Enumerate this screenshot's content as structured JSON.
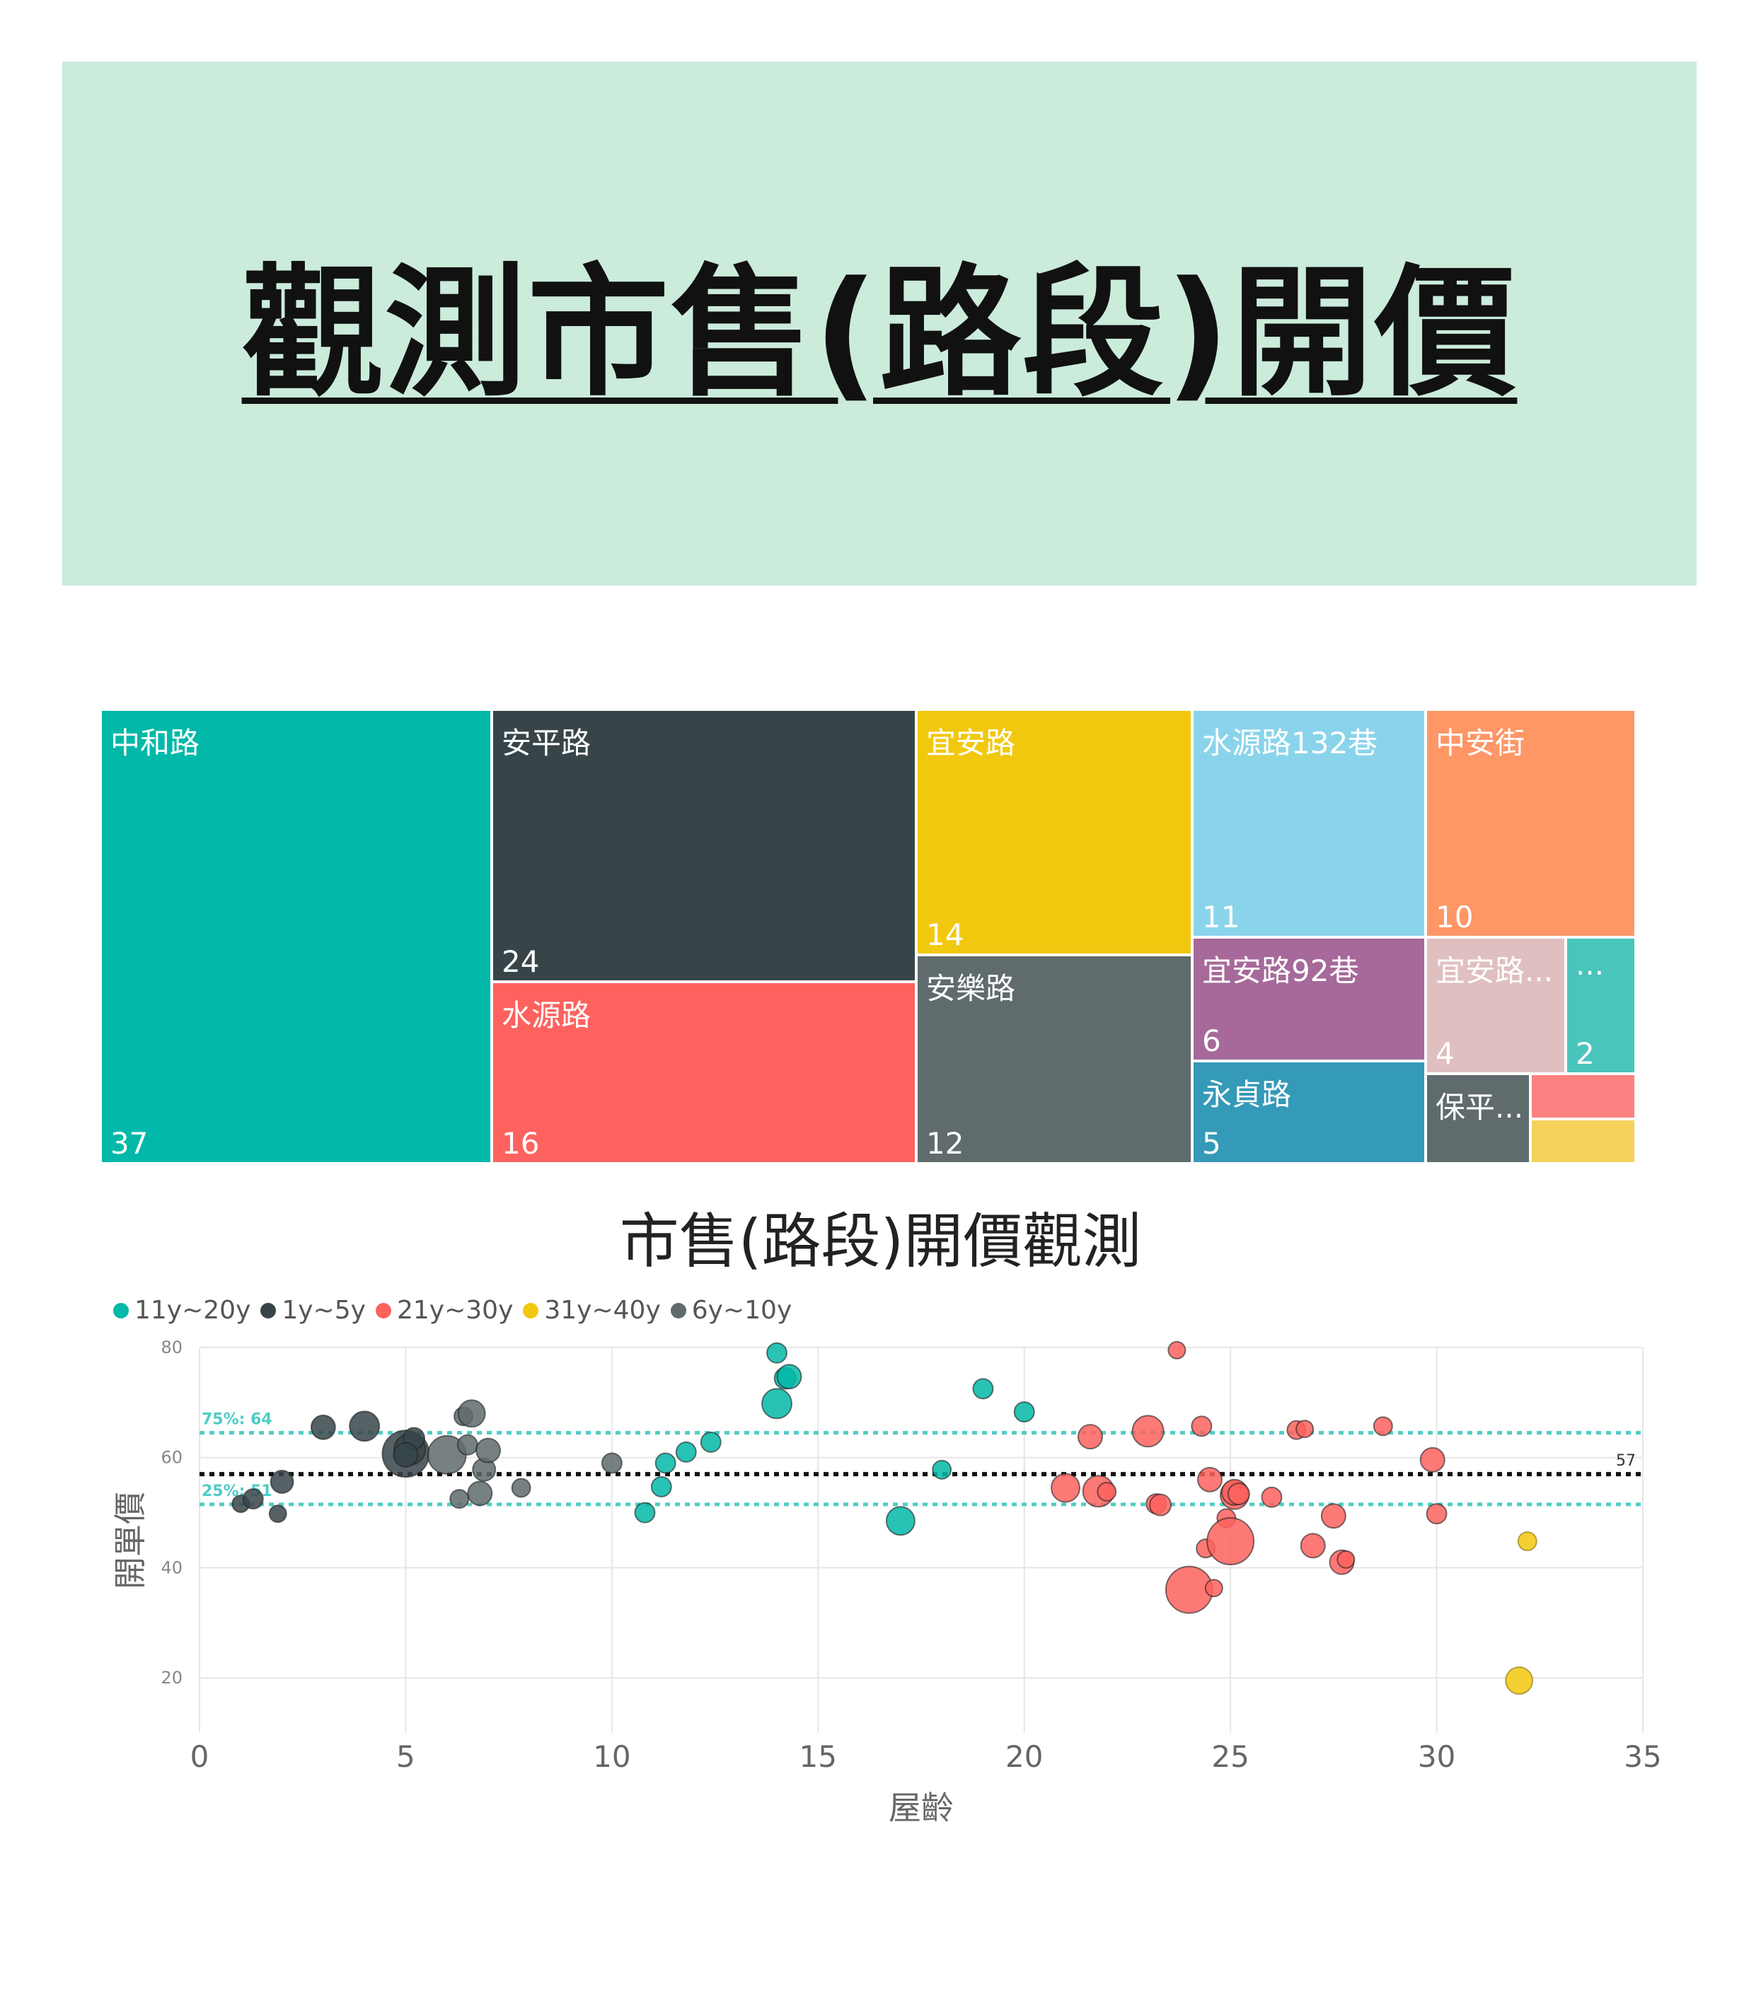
{
  "banner": {
    "title": "觀測市售(路段)開價"
  },
  "treemap": {
    "type": "treemap",
    "tiles": [
      {
        "label": "中和路",
        "value": "37",
        "color": "#02b8a8"
      },
      {
        "label": "安平路",
        "value": "24",
        "color": "#374549"
      },
      {
        "label": "水源路",
        "value": "16",
        "color": "#fd625e"
      },
      {
        "label": "宜安路",
        "value": "14",
        "color": "#f2c80f"
      },
      {
        "label": "安樂路",
        "value": "12",
        "color": "#5f6b6d"
      },
      {
        "label": "水源路132巷",
        "value": "11",
        "color": "#8ad4eb"
      },
      {
        "label": "中安街",
        "value": "10",
        "color": "#fe9666"
      },
      {
        "label": "宜安路92巷",
        "value": "6",
        "color": "#a66999"
      },
      {
        "label": "永貞路",
        "value": "5",
        "color": "#3599b8"
      },
      {
        "label": "宜安路...",
        "value": "4",
        "color": "#dfbfbf"
      },
      {
        "label": "...",
        "value": "2",
        "color": "#4ac5bb"
      },
      {
        "label": "保平...",
        "value": "",
        "color": "#5f6b6d"
      },
      {
        "label": "",
        "value": "",
        "color": "#fb8281"
      },
      {
        "label": "",
        "value": "",
        "color": "#f4d25a"
      }
    ]
  },
  "chart_data": {
    "type": "scatter",
    "title": "市售(路段)開價觀測",
    "xlabel": "屋齡",
    "ylabel": "開單價",
    "xlim": [
      0,
      35
    ],
    "ylim": [
      10,
      80
    ],
    "xticks": [
      "0",
      "5",
      "10",
      "15",
      "20",
      "25",
      "30",
      "35"
    ],
    "yticks": [
      "20",
      "40",
      "60",
      "80"
    ],
    "grid": true,
    "legend_position": "top-left",
    "reference_lines": [
      {
        "label": "75%: 64",
        "y": 64.5,
        "color": "#4ecdc4",
        "style": "dotted"
      },
      {
        "label": "57",
        "y": 57,
        "color": "#111111",
        "style": "dotted"
      },
      {
        "label": "25%: 51",
        "y": 51.5,
        "color": "#4ecdc4",
        "style": "dotted"
      }
    ],
    "series": [
      {
        "name": "11y~20y",
        "color": "#02b8a8",
        "points": [
          [
            10.8,
            50,
            14
          ],
          [
            11.2,
            54.7,
            14
          ],
          [
            11.3,
            59,
            14
          ],
          [
            11.8,
            61,
            14
          ],
          [
            12.4,
            62.8,
            14
          ],
          [
            14,
            79,
            14
          ],
          [
            14.2,
            74.4,
            15
          ],
          [
            14.3,
            74.7,
            17
          ],
          [
            14,
            69.8,
            21
          ],
          [
            17,
            48.5,
            20
          ],
          [
            18,
            57.8,
            13
          ],
          [
            19,
            72.5,
            14
          ],
          [
            20,
            68.3,
            14
          ]
        ]
      },
      {
        "name": "1y~5y",
        "color": "#374549",
        "points": [
          [
            1,
            51.6,
            12
          ],
          [
            1.3,
            52.5,
            14
          ],
          [
            1.9,
            49.8,
            12
          ],
          [
            2,
            55.6,
            16
          ],
          [
            3,
            65.5,
            17
          ],
          [
            4,
            65.7,
            21
          ],
          [
            5,
            60.7,
            33
          ],
          [
            5.1,
            61.5,
            22
          ],
          [
            5.2,
            63.5,
            15
          ],
          [
            5,
            60.5,
            17
          ]
        ]
      },
      {
        "name": "21y~30y",
        "color": "#fd625e",
        "points": [
          [
            21,
            54.5,
            20
          ],
          [
            21.6,
            63.8,
            17
          ],
          [
            21.8,
            53.9,
            22
          ],
          [
            22,
            53.8,
            13
          ],
          [
            23,
            64.8,
            22
          ],
          [
            23.2,
            51.6,
            14
          ],
          [
            23.3,
            51.4,
            15
          ],
          [
            23.7,
            79.5,
            12
          ],
          [
            24,
            36,
            33
          ],
          [
            24.3,
            65.7,
            14
          ],
          [
            24.4,
            43.5,
            13
          ],
          [
            24.5,
            56,
            17
          ],
          [
            24.6,
            36.3,
            12
          ],
          [
            24.9,
            49,
            13
          ],
          [
            25,
            44.8,
            33
          ],
          [
            25.1,
            53.2,
            20
          ],
          [
            25.1,
            53.7,
            18
          ],
          [
            25.2,
            53.4,
            15
          ],
          [
            26,
            52.8,
            14
          ],
          [
            26.6,
            65,
            13
          ],
          [
            26.8,
            65.2,
            12
          ],
          [
            27,
            44,
            17
          ],
          [
            27.5,
            49.4,
            17
          ],
          [
            27.7,
            41,
            17
          ],
          [
            27.8,
            41.5,
            12
          ],
          [
            28.7,
            65.7,
            13
          ],
          [
            29.9,
            59.6,
            17
          ],
          [
            30,
            49.8,
            14
          ]
        ]
      },
      {
        "name": "31y~40y",
        "color": "#f2c80f",
        "points": [
          [
            32,
            19.5,
            19
          ],
          [
            32.2,
            44.8,
            13
          ]
        ]
      },
      {
        "name": "6y~10y",
        "color": "#5f6b6d",
        "points": [
          [
            6,
            60.5,
            27
          ],
          [
            6.3,
            52.5,
            13
          ],
          [
            6.4,
            67.5,
            13
          ],
          [
            6.5,
            62.3,
            14
          ],
          [
            6.6,
            68,
            19
          ],
          [
            6.8,
            53.5,
            17
          ],
          [
            6.9,
            57.8,
            16
          ],
          [
            7,
            61.3,
            17
          ],
          [
            7.8,
            54.5,
            13
          ],
          [
            10,
            59,
            14
          ]
        ]
      }
    ]
  }
}
